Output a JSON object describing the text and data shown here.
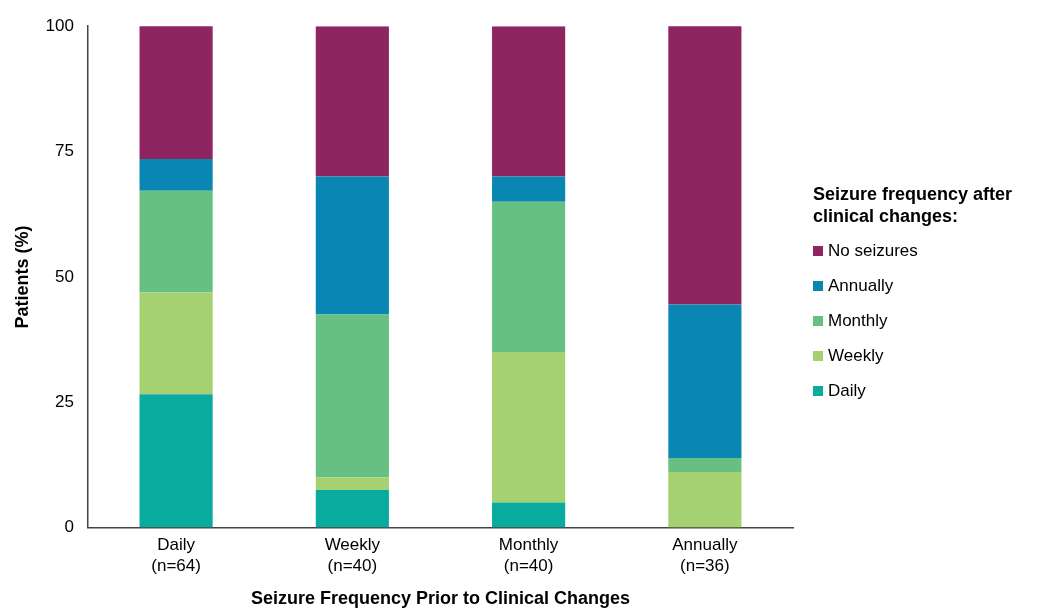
{
  "chart_data": {
    "type": "bar",
    "stacked": true,
    "xlabel": "Seizure Frequency Prior to Clinical Changes",
    "ylabel": "Patients (%)",
    "legend_title": "Seizure frequency after clinical changes:",
    "legend": "right",
    "grid": false,
    "categories": [
      "Daily\n(n=64)",
      "Weekly\n(n=40)",
      "Monthly\n(n=40)",
      "Annually\n(n=36)"
    ],
    "ylim": [
      0,
      100
    ],
    "yticks": [
      0,
      25,
      50,
      75,
      100
    ],
    "series": [
      {
        "name": "Daily",
        "color": "#0aab9f",
        "values": [
          26.6,
          7.5,
          5,
          0
        ]
      },
      {
        "name": "Weekly",
        "color": "#a6d171",
        "values": [
          20.3,
          2.5,
          30,
          11.1
        ]
      },
      {
        "name": "Monthly",
        "color": "#66c081",
        "values": [
          20.3,
          32.5,
          30,
          2.8
        ]
      },
      {
        "name": "Annually",
        "color": "#0a86b3",
        "values": [
          6.3,
          27.5,
          5,
          30.6
        ]
      },
      {
        "name": "No seizures",
        "color": "#8e2560",
        "values": [
          26.6,
          30,
          30,
          55.6
        ]
      }
    ]
  }
}
